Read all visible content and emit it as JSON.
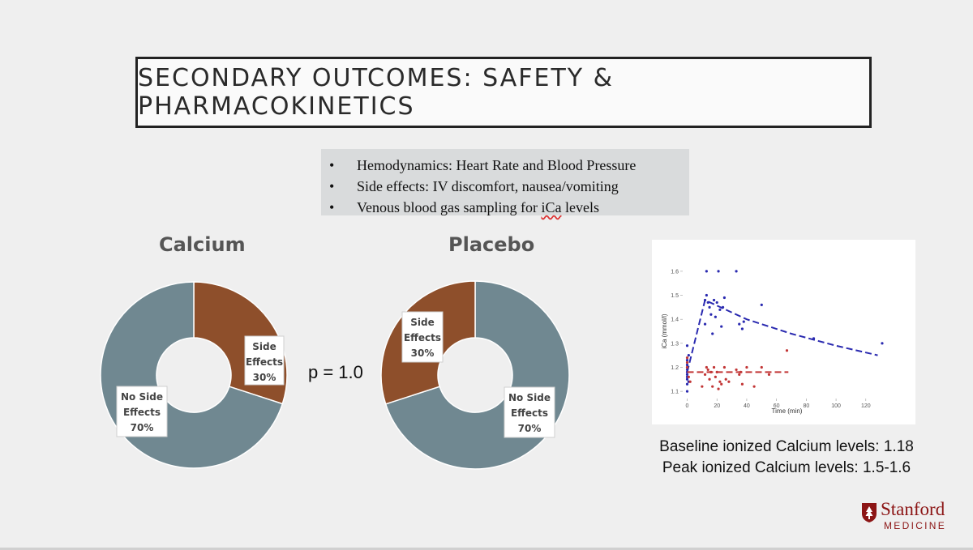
{
  "title": "SECONDARY OUTCOMES: SAFETY & PHARMACOKINETICS",
  "bullets": [
    {
      "marker": "•",
      "text": "Hemodynamics: Heart Rate and Blood Pressure"
    },
    {
      "marker": "•",
      "text": "Side effects: IV discomfort, nausea/vomiting"
    },
    {
      "marker": "•",
      "text_before": "Venous blood gas sampling for ",
      "text_underlined": "iCa",
      "text_after": " levels"
    }
  ],
  "p_value_text": "p = 1.0",
  "captions": {
    "baseline": "Baseline ionized Calcium levels: 1.18",
    "peak": "Peak ionized Calcium levels: 1.5-1.6"
  },
  "logo": {
    "word": "Stanford",
    "sub": "MEDICINE",
    "color": "#8c1515"
  },
  "chart_data": [
    {
      "type": "pie",
      "subtype": "donut",
      "title": "Calcium",
      "colors": {
        "Side Effects": "#8e4f2b",
        "No Side Effects": "#708891"
      },
      "slices": [
        {
          "label": [
            "Side",
            "Effects"
          ],
          "value": 30,
          "value_label": "30%",
          "color": "#8e4f2b"
        },
        {
          "label": [
            "No Side",
            "Effects"
          ],
          "value": 70,
          "value_label": "70%",
          "color": "#708891"
        }
      ]
    },
    {
      "type": "pie",
      "subtype": "donut",
      "title": "Placebo",
      "colors": {
        "Side Effects": "#8e4f2b",
        "No Side Effects": "#708891"
      },
      "slices": [
        {
          "label": [
            "No Side",
            "Effects"
          ],
          "value": 70,
          "value_label": "70%",
          "color": "#708891"
        },
        {
          "label": [
            "Side",
            "Effects"
          ],
          "value": 30,
          "value_label": "30%",
          "color": "#8e4f2b"
        }
      ]
    },
    {
      "type": "scatter",
      "xlabel": "Time (min)",
      "ylabel": "iCa (mmol/l)",
      "xlim": [
        -3,
        137
      ],
      "ylim": [
        1.07,
        1.63
      ],
      "xticks": [
        "0",
        "20",
        "40",
        "60",
        "80",
        "100",
        "120"
      ],
      "yticks": [
        "1.1",
        "1.2",
        "1.3",
        "1.4",
        "1.5",
        "1.6"
      ],
      "grid": false,
      "series": [
        {
          "color": "#2a2ab0",
          "points": [
            [
              0,
              1.1
            ],
            [
              0,
              1.13
            ],
            [
              0,
              1.15
            ],
            [
              0,
              1.16
            ],
            [
              0,
              1.17
            ],
            [
              0,
              1.18
            ],
            [
              0,
              1.19
            ],
            [
              0,
              1.2
            ],
            [
              0,
              1.21
            ],
            [
              0,
              1.23
            ],
            [
              0,
              1.29
            ],
            [
              1,
              1.14
            ],
            [
              1,
              1.25
            ],
            [
              12,
              1.48
            ],
            [
              12,
              1.38
            ],
            [
              13,
              1.6
            ],
            [
              13,
              1.5
            ],
            [
              14,
              1.47
            ],
            [
              15,
              1.45
            ],
            [
              16,
              1.42
            ],
            [
              17,
              1.34
            ],
            [
              18,
              1.48
            ],
            [
              19,
              1.41
            ],
            [
              20,
              1.47
            ],
            [
              21,
              1.6
            ],
            [
              22,
              1.44
            ],
            [
              23,
              1.37
            ],
            [
              24,
              1.45
            ],
            [
              25,
              1.49
            ],
            [
              33,
              1.6
            ],
            [
              35,
              1.38
            ],
            [
              37,
              1.36
            ],
            [
              38,
              1.39
            ],
            [
              50,
              1.46
            ],
            [
              85,
              1.32
            ],
            [
              131,
              1.3
            ]
          ],
          "trend": [
            [
              0,
              1.18
            ],
            [
              12,
              1.48
            ],
            [
              40,
              1.4
            ],
            [
              70,
              1.34
            ],
            [
              100,
              1.29
            ],
            [
              128,
              1.25
            ]
          ]
        },
        {
          "color": "#c23535",
          "points": [
            [
              0,
              1.24
            ],
            [
              0,
              1.22
            ],
            [
              0,
              1.2
            ],
            [
              1,
              1.16
            ],
            [
              2,
              1.14
            ],
            [
              10,
              1.12
            ],
            [
              12,
              1.17
            ],
            [
              13,
              1.2
            ],
            [
              14,
              1.19
            ],
            [
              15,
              1.15
            ],
            [
              16,
              1.18
            ],
            [
              17,
              1.12
            ],
            [
              18,
              1.2
            ],
            [
              19,
              1.16
            ],
            [
              20,
              1.18
            ],
            [
              21,
              1.11
            ],
            [
              22,
              1.14
            ],
            [
              23,
              1.13
            ],
            [
              25,
              1.2
            ],
            [
              26,
              1.15
            ],
            [
              28,
              1.14
            ],
            [
              33,
              1.19
            ],
            [
              35,
              1.17
            ],
            [
              36,
              1.18
            ],
            [
              37,
              1.13
            ],
            [
              40,
              1.2
            ],
            [
              45,
              1.12
            ],
            [
              50,
              1.2
            ],
            [
              55,
              1.17
            ],
            [
              67,
              1.27
            ]
          ],
          "trend": [
            [
              0,
              1.18
            ],
            [
              68,
              1.18
            ]
          ]
        }
      ]
    }
  ]
}
